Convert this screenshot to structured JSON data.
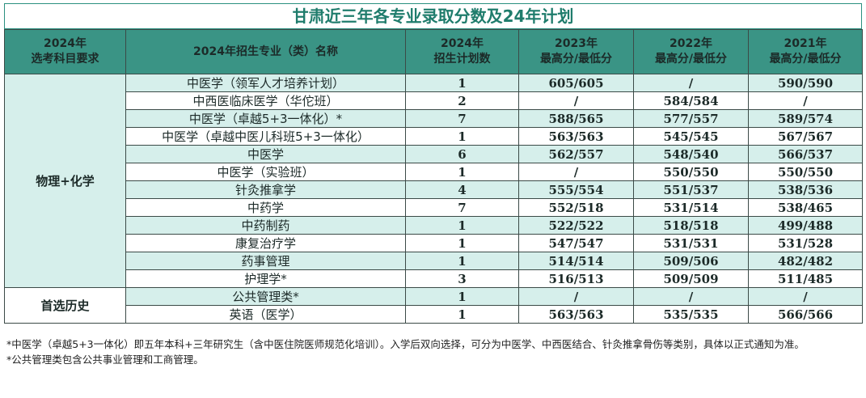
{
  "title": "甘肃近三年各专业录取分数及24年计划",
  "headers": {
    "subject_req": [
      "2024年",
      "选考科目要求"
    ],
    "major": "2024年招生专业（类）名称",
    "plan": [
      "2024年",
      "招生计划数"
    ],
    "y2023": [
      "2023年",
      "最高分/最低分"
    ],
    "y2022": [
      "2022年",
      "最高分/最低分"
    ],
    "y2021": [
      "2021年",
      "最高分/最低分"
    ]
  },
  "groups": [
    {
      "label": "物理+化学",
      "rows": [
        {
          "major": "中医学（领军人才培养计划）",
          "plan": "1",
          "y2023": "605/605",
          "y2022": "/",
          "y2021": "590/590"
        },
        {
          "major": "中西医临床医学（华佗班）",
          "plan": "2",
          "y2023": "/",
          "y2022": "584/584",
          "y2021": "/"
        },
        {
          "major": "中医学（卓越5+3一体化）*",
          "plan": "7",
          "y2023": "588/565",
          "y2022": "577/557",
          "y2021": "589/574"
        },
        {
          "major": "中医学（卓越中医儿科班5+3一体化）",
          "plan": "1",
          "y2023": "563/563",
          "y2022": "545/545",
          "y2021": "567/567"
        },
        {
          "major": "中医学",
          "plan": "6",
          "y2023": "562/557",
          "y2022": "548/540",
          "y2021": "566/537"
        },
        {
          "major": "中医学（实验班）",
          "plan": "1",
          "y2023": "/",
          "y2022": "550/550",
          "y2021": "550/550"
        },
        {
          "major": "针灸推拿学",
          "plan": "4",
          "y2023": "555/554",
          "y2022": "551/537",
          "y2021": "538/536"
        },
        {
          "major": "中药学",
          "plan": "7",
          "y2023": "552/518",
          "y2022": "531/514",
          "y2021": "538/465"
        },
        {
          "major": "中药制药",
          "plan": "1",
          "y2023": "522/522",
          "y2022": "518/518",
          "y2021": "499/488"
        },
        {
          "major": "康复治疗学",
          "plan": "1",
          "y2023": "547/547",
          "y2022": "531/531",
          "y2021": "531/528"
        },
        {
          "major": "药事管理",
          "plan": "1",
          "y2023": "514/514",
          "y2022": "509/506",
          "y2021": "482/482"
        },
        {
          "major": "护理学*",
          "plan": "3",
          "y2023": "516/513",
          "y2022": "509/509",
          "y2021": "511/485"
        }
      ]
    },
    {
      "label": "首选历史",
      "rows": [
        {
          "major": "公共管理类*",
          "plan": "1",
          "y2023": "/",
          "y2022": "/",
          "y2021": "/"
        },
        {
          "major": "英语（医学）",
          "plan": "1",
          "y2023": "563/563",
          "y2022": "535/535",
          "y2021": "566/566"
        }
      ]
    }
  ],
  "notes": [
    "*中医学（卓越5+3一体化）即五年本科+三年研究生（含中医住院医师规范化培训）。入学后双向选择，可分为中医学、中西医结合、针灸推拿骨伤等类别，具体以正式通知为准。",
    "*公共管理类包含公共事业管理和工商管理。"
  ]
}
